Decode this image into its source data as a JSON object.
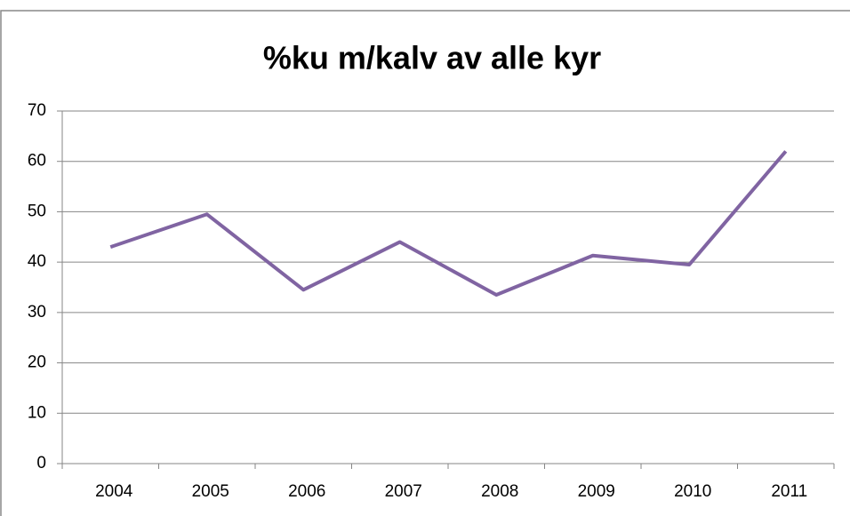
{
  "chart_data": {
    "type": "line",
    "title": "%ku m/kalv av alle kyr",
    "categories": [
      "2004",
      "2005",
      "2006",
      "2007",
      "2008",
      "2009",
      "2010",
      "2011"
    ],
    "series": [
      {
        "name": null,
        "color": "#8064a2",
        "values": [
          43,
          49.5,
          34.5,
          44,
          33.5,
          41.3,
          39.5,
          62
        ]
      }
    ],
    "ylim": [
      0,
      70
    ],
    "yticks": [
      0,
      10,
      20,
      30,
      40,
      50,
      60,
      70
    ],
    "grid": true,
    "legend": false
  }
}
